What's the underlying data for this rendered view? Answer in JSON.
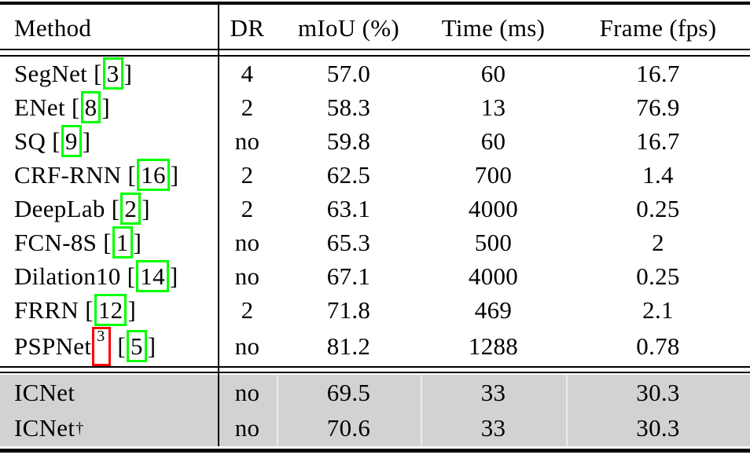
{
  "document": {
    "columns": [
      {
        "label": "Method"
      },
      {
        "label": "DR"
      },
      {
        "label": "mIoU (%)"
      },
      {
        "label": "Time (ms)"
      },
      {
        "label": "Frame (fps)"
      }
    ],
    "rows": [
      {
        "method": "SegNet",
        "cite": "3",
        "dr": "4",
        "miou": "57.0",
        "time": "60",
        "fps": "16.7"
      },
      {
        "method": "ENet",
        "cite": "8",
        "dr": "2",
        "miou": "58.3",
        "time": "13",
        "fps": "76.9"
      },
      {
        "method": "SQ",
        "cite": "9",
        "dr": "no",
        "miou": "59.8",
        "time": "60",
        "fps": "16.7"
      },
      {
        "method": "CRF-RNN",
        "cite": "16",
        "dr": "2",
        "miou": "62.5",
        "time": "700",
        "fps": "1.4"
      },
      {
        "method": "DeepLab",
        "cite": "2",
        "dr": "2",
        "miou": "63.1",
        "time": "4000",
        "fps": "0.25"
      },
      {
        "method": "FCN-8S",
        "cite": "1",
        "dr": "no",
        "miou": "65.3",
        "time": "500",
        "fps": "2"
      },
      {
        "method": "Dilation10",
        "cite": "14",
        "dr": "no",
        "miou": "67.1",
        "time": "4000",
        "fps": "0.25"
      },
      {
        "method": "FRRN",
        "cite": "12",
        "dr": "2",
        "miou": "71.8",
        "time": "469",
        "fps": "2.1"
      },
      {
        "method": "PSPNet",
        "footnote": "3",
        "cite": "5",
        "dr": "no",
        "miou": "81.2",
        "time": "1288",
        "fps": "0.78"
      }
    ],
    "highlight_rows": [
      {
        "method": "ICNet",
        "dr": "no",
        "miou": "69.5",
        "time": "33",
        "fps": "30.3"
      },
      {
        "method": "ICNet",
        "sup": "†",
        "dr": "no",
        "miou": "70.6",
        "time": "33",
        "fps": "30.3"
      }
    ],
    "colors": {
      "highlight_bg": "#d2d2d2",
      "citation_box": "#00ff00",
      "footnote_box": "#ff0000"
    }
  }
}
